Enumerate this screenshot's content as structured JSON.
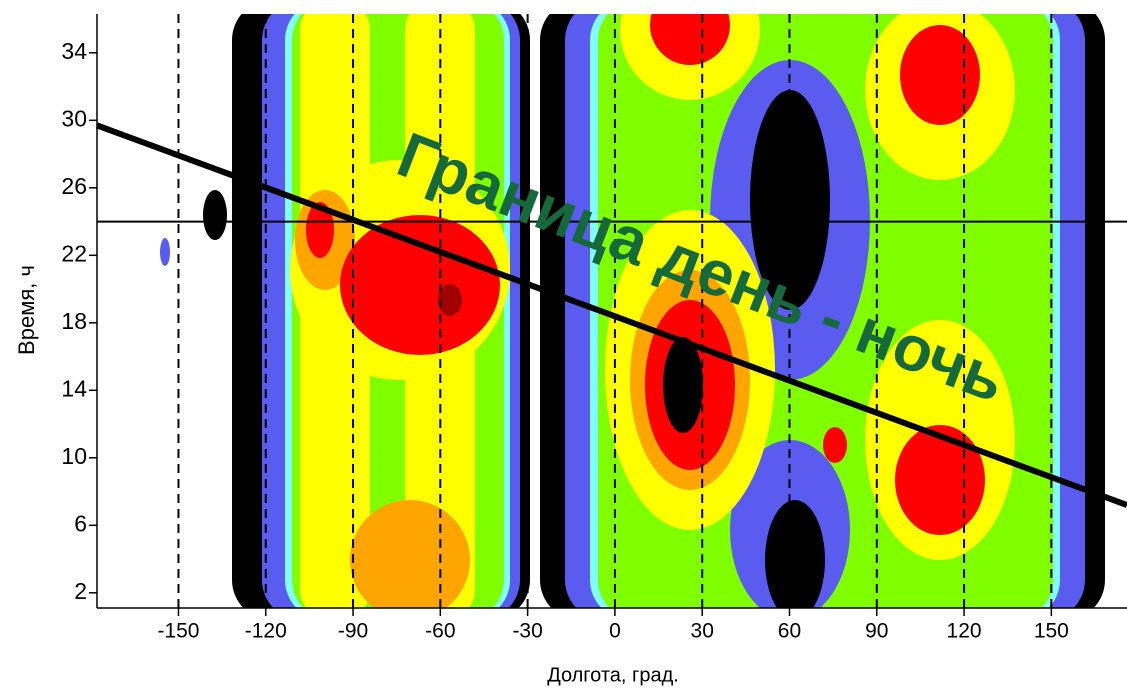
{
  "chart_data": {
    "type": "contour",
    "x_label": "Долгота, град.",
    "y_label": "Время, ч",
    "annotation": "Граница день - ночь",
    "annotation_color": "#16693a",
    "xlim": [
      -178,
      176
    ],
    "ylim": [
      1.1,
      36.3
    ],
    "xticks": [
      -150,
      -120,
      -90,
      -60,
      -30,
      0,
      30,
      60,
      90,
      120,
      150
    ],
    "yticks": [
      2,
      6,
      10,
      14,
      18,
      22,
      26,
      30,
      34
    ],
    "reference_y": 24,
    "boundary_line": {
      "x": [
        -178,
        176
      ],
      "y": [
        29.7,
        7.2
      ]
    },
    "grid_x_dashed": true
  }
}
